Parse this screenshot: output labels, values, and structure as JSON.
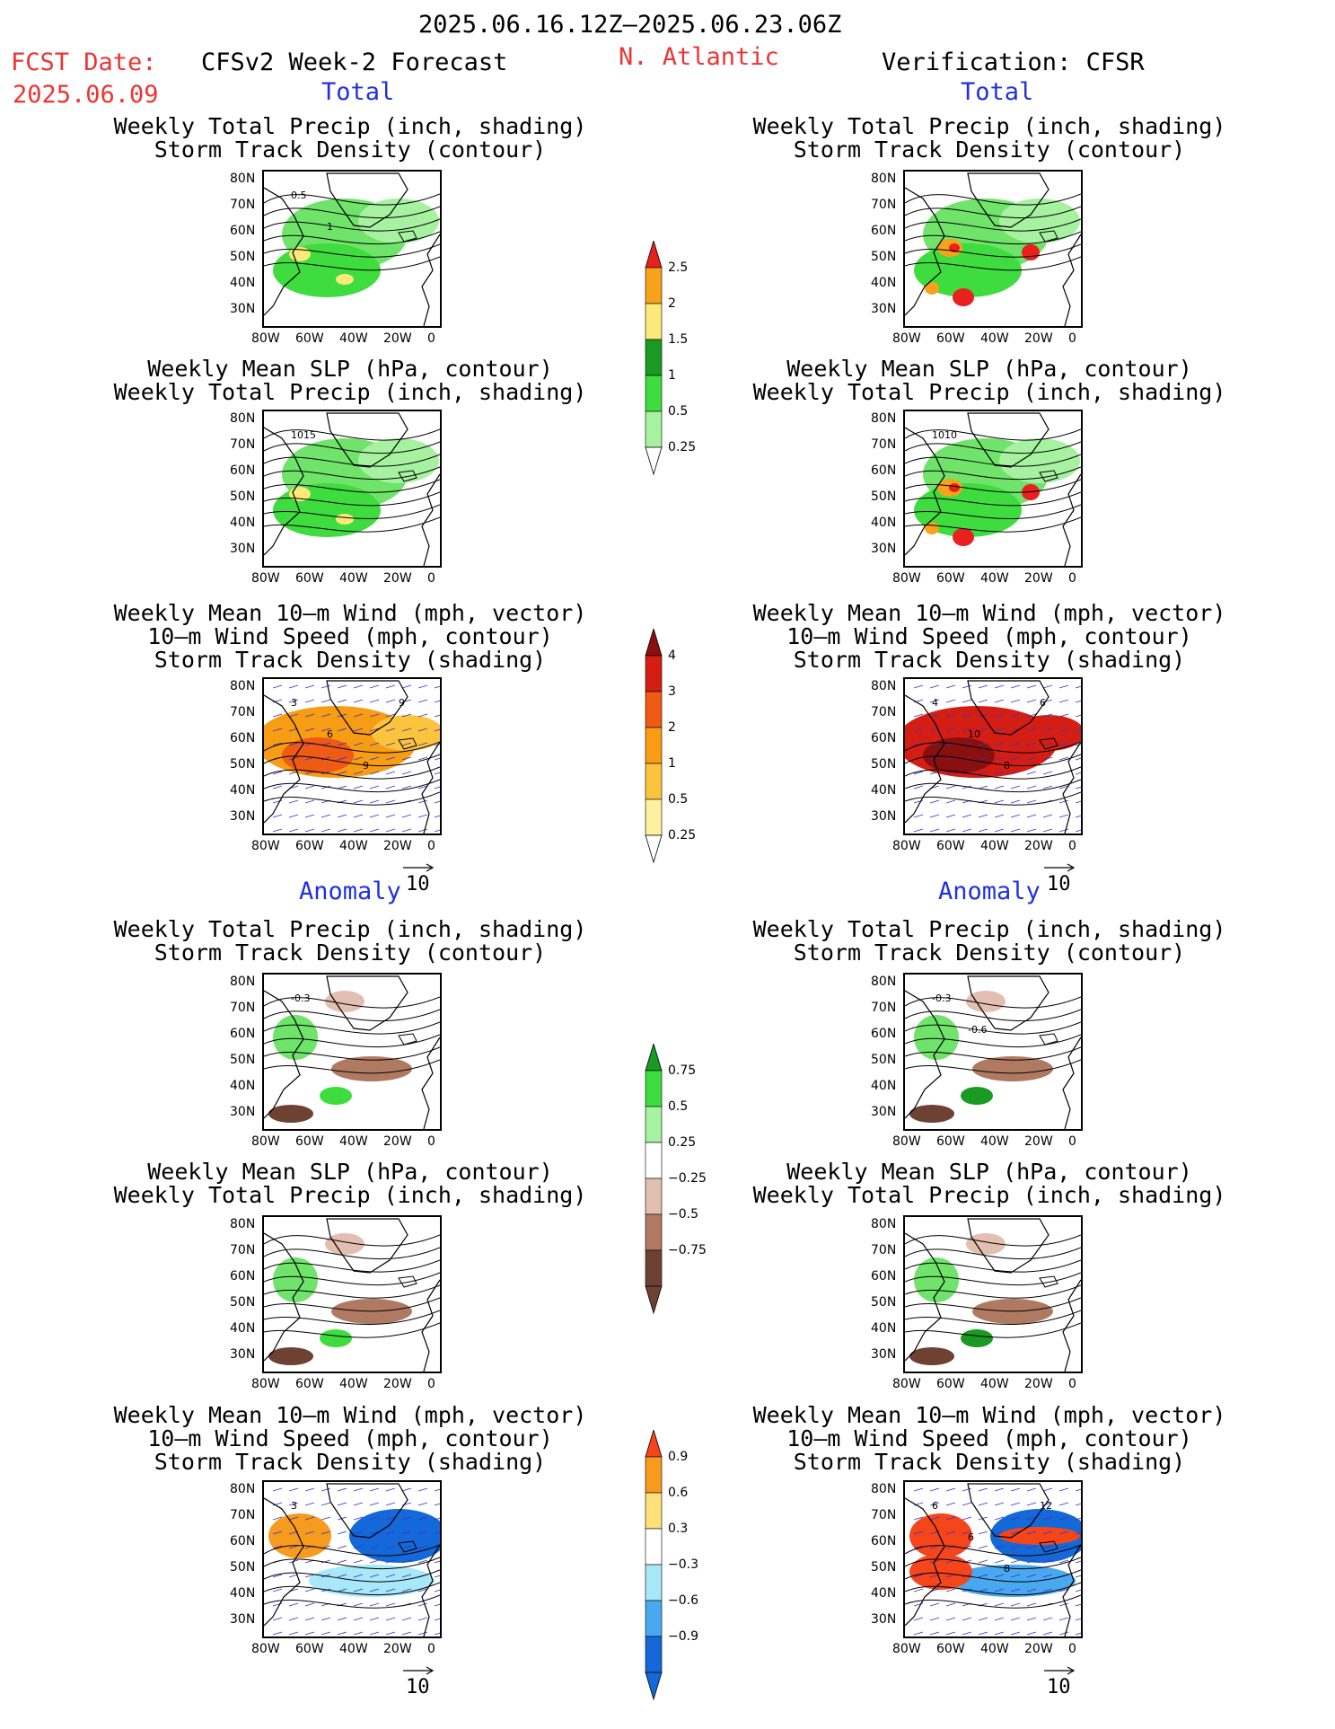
{
  "header": {
    "date_range": "2025.06.16.12Z–2025.06.23.06Z",
    "fcst_label": "FCST Date:",
    "fcst_date": "2025.06.09",
    "left_title": "CFSv2 Week-2 Forecast",
    "region": "N. Atlantic",
    "right_title": "Verification: CFSR",
    "section_total": "Total",
    "section_anomaly": "Anomaly"
  },
  "panel_titles": {
    "precip": [
      "Weekly Total Precip (inch, shading)",
      "Storm Track Density (contour)"
    ],
    "slp": [
      "Weekly Mean SLP (hPa, contour)",
      "Weekly Total Precip (inch, shading)"
    ],
    "wind": [
      "Weekly Mean 10–m Wind (mph, vector)",
      "10–m Wind Speed (mph, contour)",
      "Storm Track Density (shading)"
    ]
  },
  "axes": {
    "lat_ticks": [
      "80N",
      "70N",
      "60N",
      "50N",
      "40N",
      "30N"
    ],
    "lon_ticks": [
      "80W",
      "60W",
      "40W",
      "20W",
      "0"
    ]
  },
  "vector_ref": "10",
  "contour_labels": {
    "fc_total_precip": [
      "0.5",
      "1"
    ],
    "fc_total_slp": [
      "1015"
    ],
    "fc_total_wind": [
      "3",
      "6",
      "9",
      "9"
    ],
    "ver_total_slp": [
      "1010"
    ],
    "ver_total_wind": [
      "4",
      "10",
      "8",
      "6"
    ],
    "fc_anom_precip": [
      "-0.3"
    ],
    "ver_anom_precip": [
      "-0.3",
      "-0.6"
    ],
    "fc_anom_wind": [
      "3"
    ],
    "ver_anom_wind": [
      "6",
      "6",
      "8",
      "12"
    ]
  },
  "colorbars": {
    "precip_total": {
      "labels": [
        "2.5",
        "2",
        "1.5",
        "1",
        "0.5",
        "0.25"
      ],
      "colors": [
        "#e8201e",
        "#f7a21b",
        "#fde87a",
        "#1a9a22",
        "#3fdc3f",
        "#a6f2a0"
      ]
    },
    "std_total": {
      "labels": [
        "4",
        "3",
        "2",
        "1",
        "0.5",
        "0.25"
      ],
      "colors": [
        "#8a1010",
        "#d41e14",
        "#ef5a14",
        "#f89c14",
        "#fcc43c",
        "#fdf0a0"
      ]
    },
    "precip_anom": {
      "labels": [
        "0.75",
        "0.5",
        "0.25",
        "−0.25",
        "−0.5",
        "−0.75"
      ],
      "colors": [
        "#1a9a22",
        "#3fdc3f",
        "#a6f2a0",
        "#ffffff",
        "#e2bfb0",
        "#b07a62",
        "#6e4233"
      ]
    },
    "std_anom": {
      "labels": [
        "0.9",
        "0.6",
        "0.3",
        "−0.3",
        "−0.6",
        "−0.9"
      ],
      "colors": [
        "#f4461a",
        "#f79b1e",
        "#fde07a",
        "#ffffff",
        "#a8e8f8",
        "#48a8f0",
        "#1468d8"
      ]
    }
  }
}
